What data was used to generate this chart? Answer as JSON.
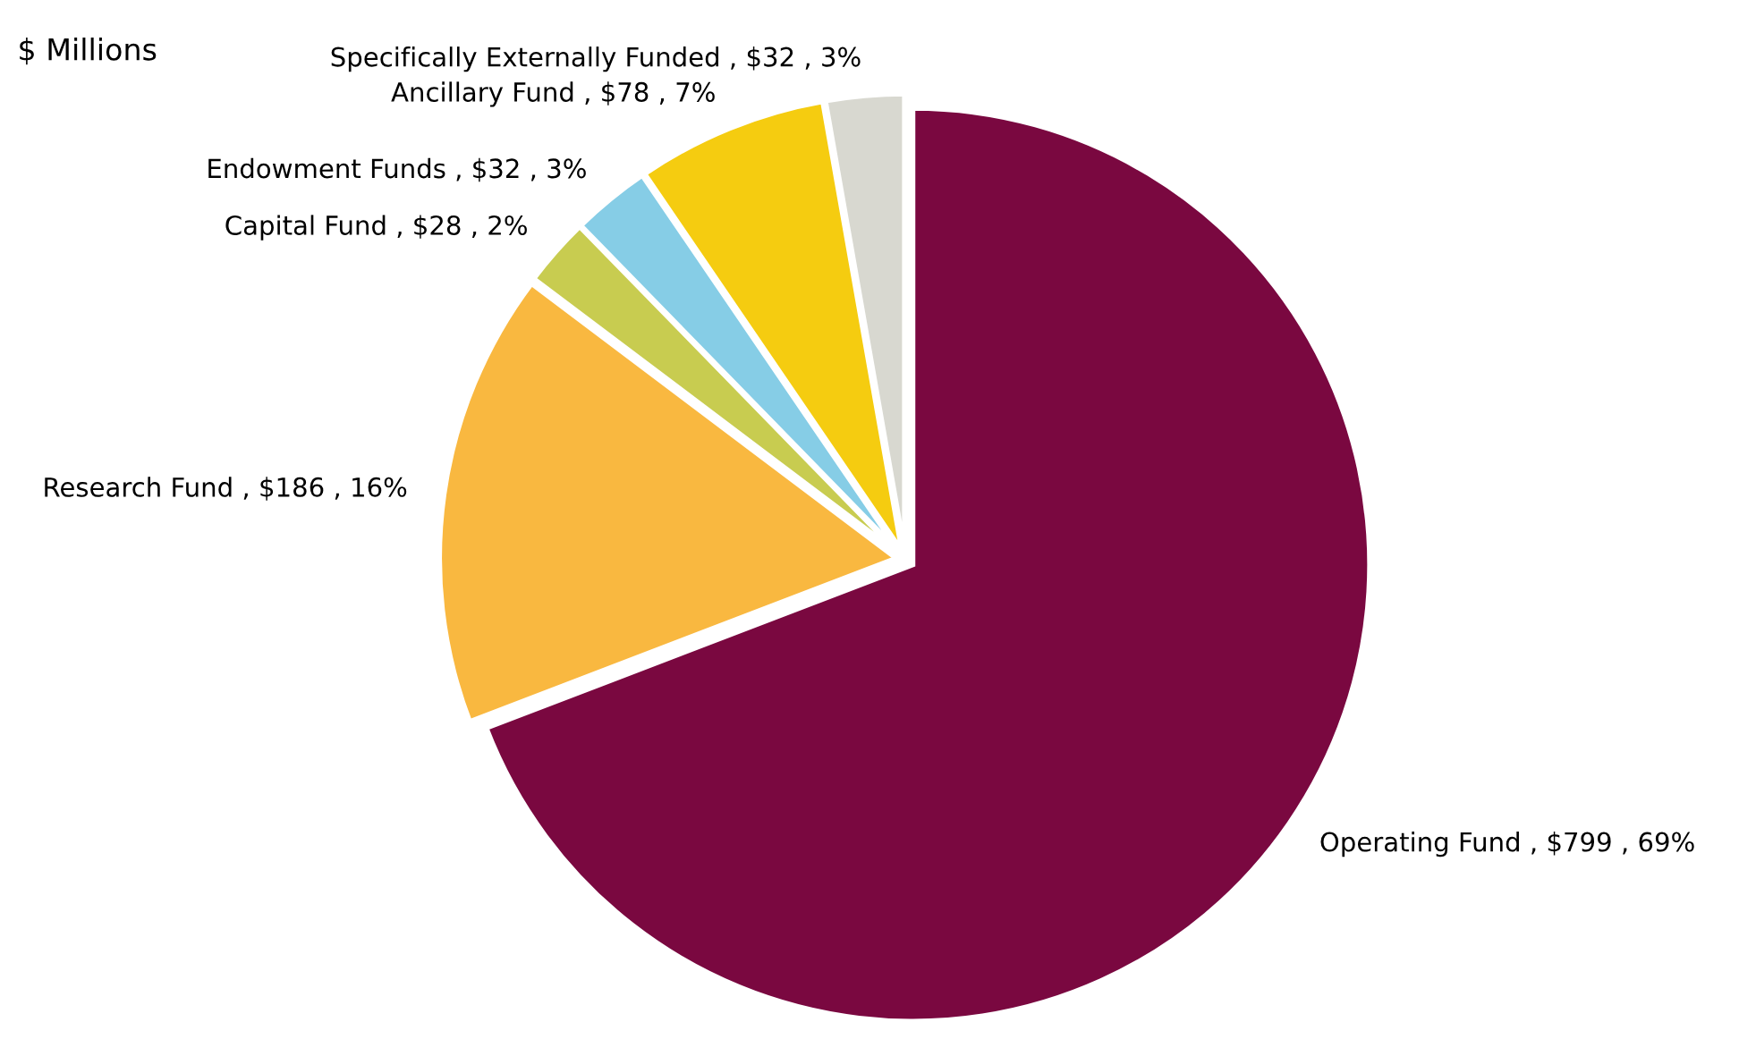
{
  "chart_data": {
    "type": "pie",
    "title": "$ Millions",
    "categories": [
      "Operating Fund",
      "Research Fund",
      "Capital Fund",
      "Endowment Funds",
      "Ancillary Fund",
      "Specifically Externally Funded"
    ],
    "values": [
      799,
      186,
      28,
      32,
      78,
      32
    ],
    "value_labels": [
      "$799 , 69%",
      "$186 , 16%",
      "$28 , 2%",
      "$32 , 3%",
      "$78 , 7%",
      "$32 , 3%"
    ],
    "colors": [
      "#7a0840",
      "#f9b840",
      "#c8cc50",
      "#86cde6",
      "#f5cc10",
      "#d8d8d0"
    ],
    "legend": false
  }
}
